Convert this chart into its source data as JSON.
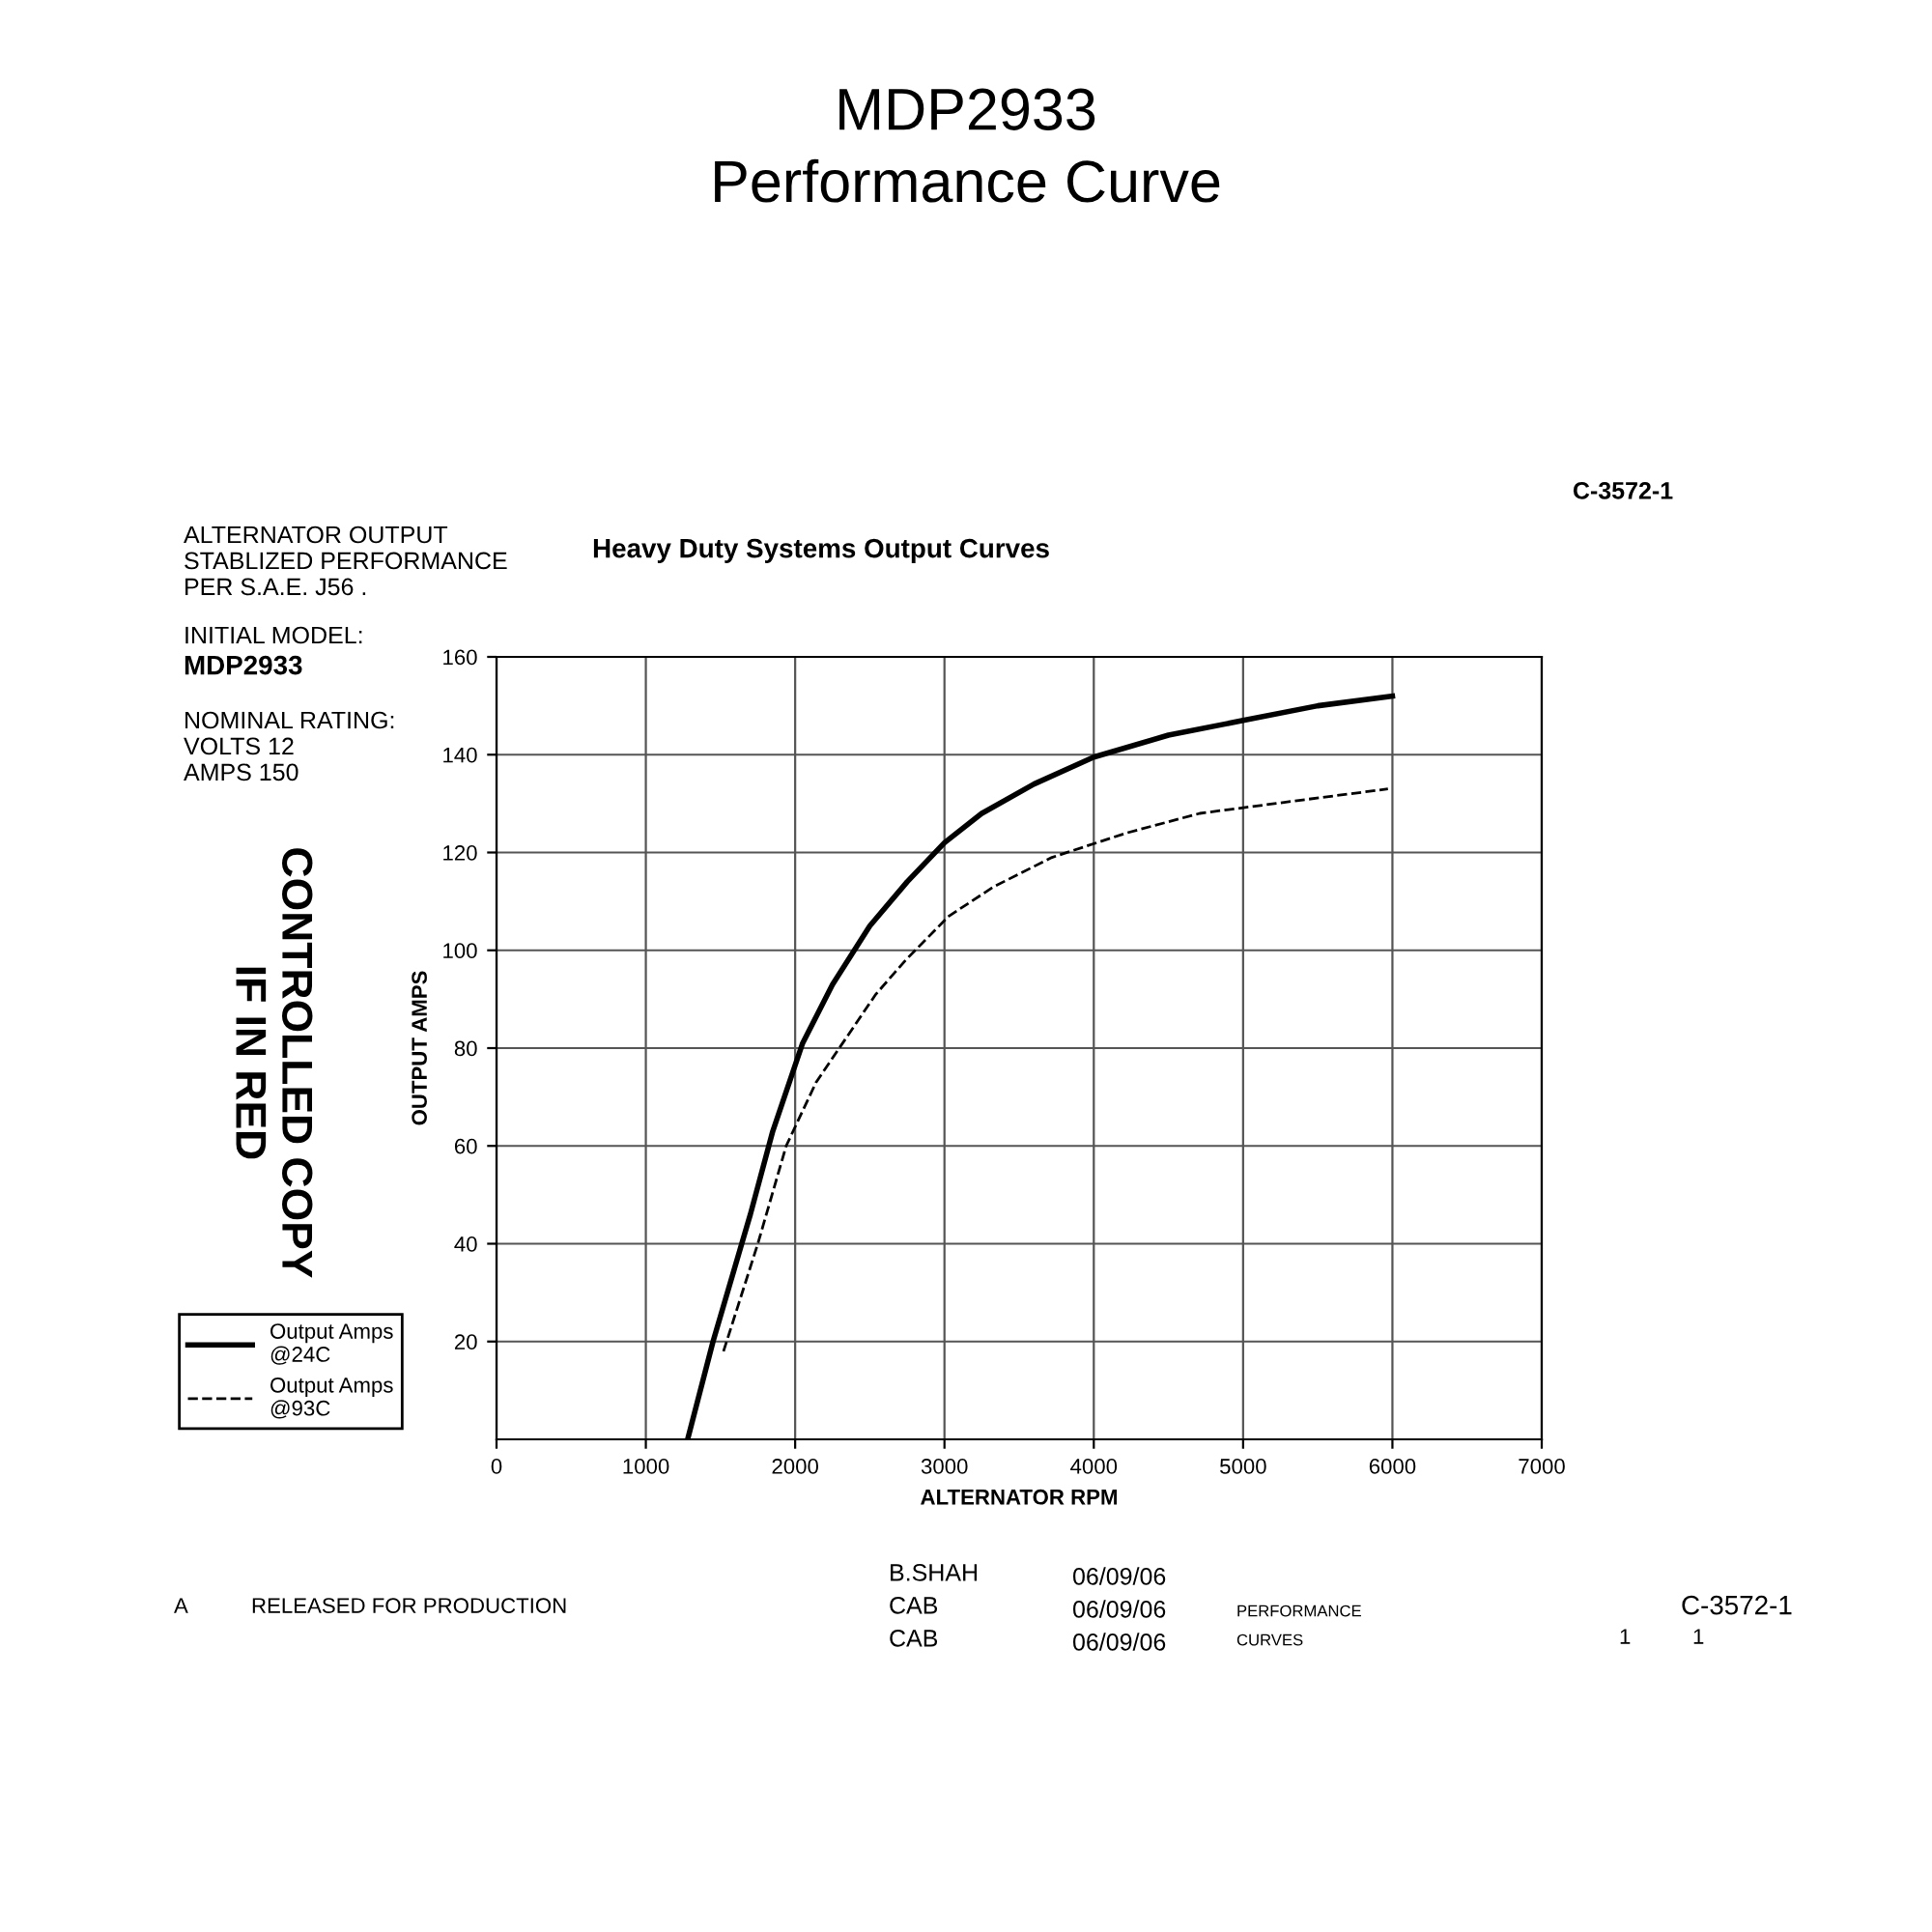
{
  "chart_data": {
    "type": "line",
    "title": "MDP2933\nPerformance Curve",
    "subtitle": "Heavy Duty Systems Output Curves",
    "xlabel": "ALTERNATOR RPM",
    "ylabel": "OUTPUT AMPS",
    "xlim": [
      0,
      7000
    ],
    "xticks": [
      0,
      1000,
      2000,
      3000,
      4000,
      5000,
      6000,
      7000
    ],
    "ylim": [
      0,
      160
    ],
    "yticks": [
      20,
      40,
      60,
      80,
      100,
      120,
      140,
      160
    ],
    "grid": true,
    "legend": "left",
    "tick_labels": true,
    "series": [
      {
        "name": "Output Amps\n@24C",
        "color": "#000000",
        "line_style": "solid",
        "x": [
          1280,
          1450,
          1700,
          1850,
          2050,
          2250,
          2500,
          2750,
          3000,
          3250,
          3600,
          4000,
          4500,
          5000,
          5500,
          6000
        ],
        "values": [
          0,
          20,
          46,
          63,
          81,
          93,
          105,
          114,
          122,
          128,
          134,
          139.5,
          144,
          147,
          150,
          152
        ]
      },
      {
        "name": "Output Amps\n@93C",
        "color": "#000000",
        "line_style": "dashed",
        "x": [
          1520,
          1750,
          1940,
          2140,
          2340,
          2540,
          2740,
          3030,
          3330,
          3720,
          4220,
          4710,
          5210,
          5970
        ],
        "values": [
          18,
          40,
          60,
          73,
          82,
          91,
          98,
          107,
          113,
          119,
          124,
          128,
          130,
          133
        ]
      }
    ],
    "annotations": [
      "ALTERNATOR OUTPUT\nSTABLIZED PERFORMANCE\nPER S.A.E. J56 .",
      "INITIAL MODEL:",
      "MDP2933",
      "NOMINAL RATING:\nVOLTS 12\nAMPS 150",
      "CONTROLLED COPY\nIF IN RED",
      "C-3572-1",
      "B.SHAH",
      "CAB",
      "CAB",
      "06/09/06",
      "06/09/06",
      "06/09/06",
      "A",
      "RELEASED FOR PRODUCTION",
      "PERFORMANCE\nCURVES",
      "C-3572-1",
      "1",
      "1"
    ]
  }
}
